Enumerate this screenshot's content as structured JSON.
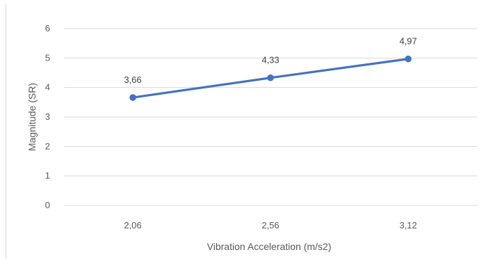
{
  "chart_data": {
    "type": "line",
    "xlabel": "Vibration Acceleration (m/s2)",
    "ylabel": "Magnitude (SR)",
    "categories": [
      "2,06",
      "2,56",
      "3,12"
    ],
    "series": [
      {
        "values": [
          3.66,
          4.33,
          4.97
        ],
        "labels": [
          "3,66",
          "4,33",
          "4,97"
        ],
        "color": "#4472c4"
      }
    ],
    "ylim": [
      0,
      6
    ],
    "yticks": [
      "0",
      "1",
      "2",
      "3",
      "4",
      "5",
      "6"
    ],
    "grid": "horizontal",
    "legend": "none"
  }
}
